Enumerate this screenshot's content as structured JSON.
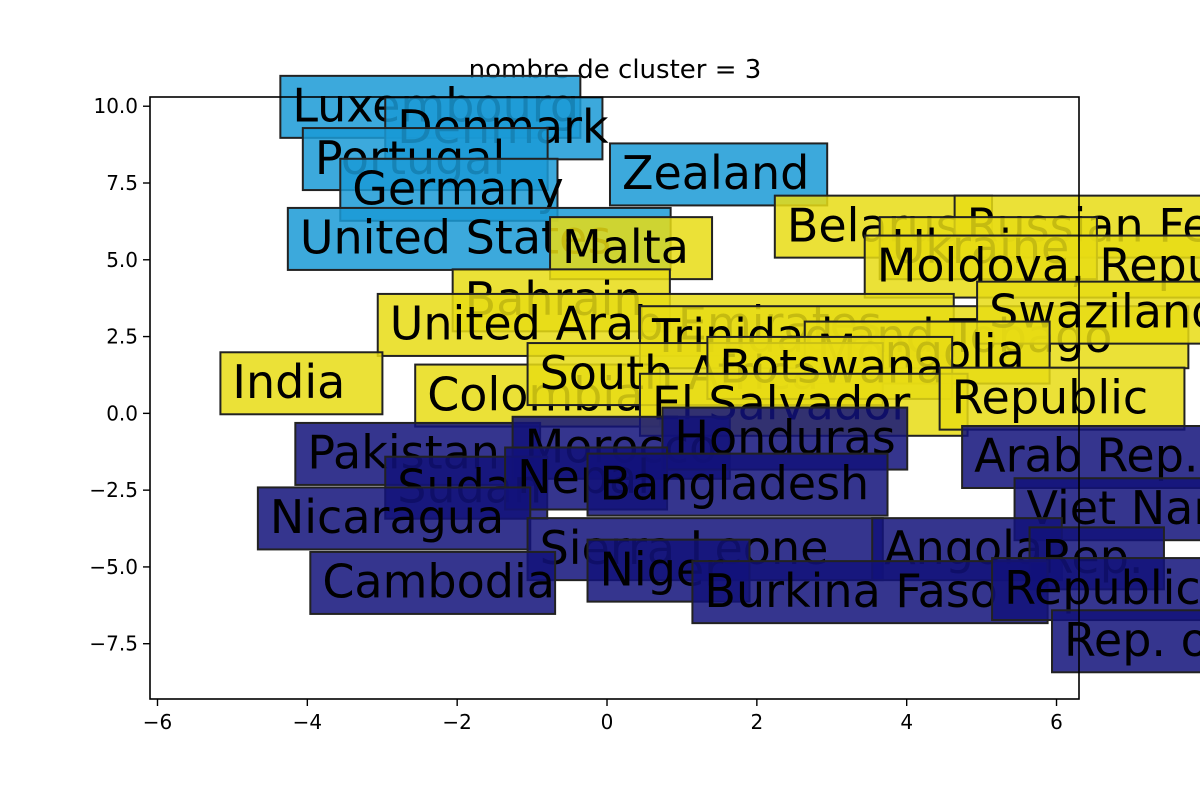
{
  "chart_data": {
    "type": "scatter",
    "title": "nombre de cluster = 3",
    "xlabel": "",
    "ylabel": "",
    "xlim": [
      -6.1,
      6.3
    ],
    "ylim": [
      -9.3,
      10.3
    ],
    "x_ticks": [
      -6,
      -4,
      -2,
      0,
      2,
      4,
      6
    ],
    "x_tick_labels": [
      "−6",
      "−4",
      "−2",
      "0",
      "2",
      "4",
      "6"
    ],
    "y_ticks": [
      -7.5,
      -5.0,
      -2.5,
      0.0,
      2.5,
      5.0,
      7.5,
      10.0
    ],
    "y_tick_labels": [
      "−7.5",
      "−5.0",
      "−2.5",
      "0.0",
      "2.5",
      "5.0",
      "7.5",
      "10.0"
    ],
    "grid": false,
    "legend": "none",
    "cluster_colors": {
      "0": "#1a9ad6",
      "1": "#e8dc14",
      "2": "#12127a"
    },
    "series": [
      {
        "cluster": 0,
        "points": [
          {
            "label": "Luxembourg",
            "x": -4.2,
            "y": 9.5
          },
          {
            "label": "Denmark",
            "x": -2.8,
            "y": 8.8
          },
          {
            "label": "Portugal",
            "x": -3.9,
            "y": 7.8
          },
          {
            "label": "Germany",
            "x": -3.4,
            "y": 6.8
          },
          {
            "label": "Zealand",
            "x": 0.2,
            "y": 7.3
          },
          {
            "label": "United States",
            "x": -4.1,
            "y": 5.2
          }
        ]
      },
      {
        "cluster": 1,
        "points": [
          {
            "label": "Malta",
            "x": -0.6,
            "y": 4.9
          },
          {
            "label": "Belarus",
            "x": 2.4,
            "y": 5.6
          },
          {
            "label": "Russian Federation",
            "x": 4.8,
            "y": 5.6
          },
          {
            "label": "Ukraine",
            "x": 3.8,
            "y": 4.9
          },
          {
            "label": "Moldova, Republic of",
            "x": 3.6,
            "y": 4.3
          },
          {
            "label": "Bahrain",
            "x": -1.9,
            "y": 3.2
          },
          {
            "label": "United Arab Emirates",
            "x": -2.9,
            "y": 2.4
          },
          {
            "label": "Trinidad and Tobago",
            "x": 0.6,
            "y": 2.0
          },
          {
            "label": "Swaziland",
            "x": 5.1,
            "y": 2.8
          },
          {
            "label": "Mongolia",
            "x": 2.8,
            "y": 1.5
          },
          {
            "label": "India",
            "x": -5.0,
            "y": 0.5
          },
          {
            "label": "Colombia",
            "x": -2.4,
            "y": 0.1
          },
          {
            "label": "South Africa",
            "x": -0.9,
            "y": 0.8
          },
          {
            "label": "Botswana",
            "x": 1.5,
            "y": 1.0
          },
          {
            "label": "El Salvador",
            "x": 0.6,
            "y": -0.2
          },
          {
            "label": "Republic",
            "x": 4.6,
            "y": 0.0
          }
        ]
      },
      {
        "cluster": 2,
        "points": [
          {
            "label": "Pakistan",
            "x": -4.0,
            "y": -1.8
          },
          {
            "label": "Morocco",
            "x": -1.1,
            "y": -1.6
          },
          {
            "label": "Honduras",
            "x": 0.9,
            "y": -1.3
          },
          {
            "label": "Arab Rep.",
            "x": 4.9,
            "y": -1.9
          },
          {
            "label": "Sudan",
            "x": -2.8,
            "y": -2.9
          },
          {
            "label": "Nepal",
            "x": -1.2,
            "y": -2.6
          },
          {
            "label": "Bangladesh",
            "x": -0.1,
            "y": -2.8
          },
          {
            "label": "Viet Nam",
            "x": 5.6,
            "y": -3.6
          },
          {
            "label": "Nicaragua",
            "x": -4.5,
            "y": -3.9
          },
          {
            "label": "Sierra Leone",
            "x": -0.9,
            "y": -4.9
          },
          {
            "label": "Niger",
            "x": -0.1,
            "y": -5.6
          },
          {
            "label": "Angola",
            "x": 3.7,
            "y": -4.9
          },
          {
            "label": "Rep.",
            "x": 5.8,
            "y": -5.2
          },
          {
            "label": "Cambodia",
            "x": -3.8,
            "y": -6.0
          },
          {
            "label": "Burkina Faso",
            "x": 1.3,
            "y": -6.3
          },
          {
            "label": "Republic",
            "x": 5.3,
            "y": -6.2
          },
          {
            "label": "Rep. of",
            "x": 6.1,
            "y": -7.9
          }
        ]
      }
    ]
  }
}
